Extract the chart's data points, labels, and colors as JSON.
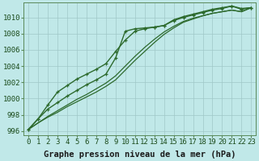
{
  "title": "Graphe pression niveau de la mer (hPa)",
  "background_color": "#c0e8e8",
  "grid_color": "#a0c8c8",
  "line_color": "#2d6a2d",
  "xlim": [
    -0.5,
    23.5
  ],
  "ylim": [
    995.5,
    1011.8
  ],
  "yticks": [
    996,
    998,
    1000,
    1002,
    1004,
    1006,
    1008,
    1010
  ],
  "xticks": [
    0,
    1,
    2,
    3,
    4,
    5,
    6,
    7,
    8,
    9,
    10,
    11,
    12,
    13,
    14,
    15,
    16,
    17,
    18,
    19,
    20,
    21,
    22,
    23
  ],
  "series": [
    {
      "y": [
        996.2,
        997.5,
        998.7,
        999.5,
        1000.3,
        1001.0,
        1001.7,
        1002.3,
        1003.0,
        1005.0,
        1008.3,
        1008.6,
        1008.7,
        1008.8,
        1009.0,
        1009.7,
        1010.1,
        1010.4,
        1010.7,
        1011.0,
        1011.2,
        1011.4,
        1011.1,
        1011.2
      ],
      "marker": true,
      "linewidth": 1.0
    },
    {
      "y": [
        996.2,
        997.0,
        997.8,
        998.5,
        999.2,
        999.9,
        1000.5,
        1001.2,
        1001.9,
        1002.8,
        1004.0,
        1005.2,
        1006.3,
        1007.3,
        1008.2,
        1008.9,
        1009.5,
        1009.9,
        1010.2,
        1010.5,
        1010.7,
        1010.9,
        1010.7,
        1011.2
      ],
      "marker": false,
      "linewidth": 0.9
    },
    {
      "y": [
        996.2,
        997.0,
        997.7,
        998.3,
        999.0,
        999.6,
        1000.2,
        1000.8,
        1001.5,
        1002.3,
        1003.5,
        1004.7,
        1005.8,
        1006.9,
        1007.9,
        1008.7,
        1009.4,
        1009.8,
        1010.2,
        1010.5,
        1010.7,
        1010.9,
        1010.7,
        1011.2
      ],
      "marker": false,
      "linewidth": 0.9
    },
    {
      "y": [
        996.2,
        997.5,
        999.2,
        1000.8,
        1001.6,
        1002.4,
        1003.0,
        1003.6,
        1004.3,
        1005.8,
        1007.2,
        1008.3,
        1008.6,
        1008.8,
        1009.0,
        1009.6,
        1010.0,
        1010.3,
        1010.6,
        1010.9,
        1011.1,
        1011.4,
        1011.0,
        1011.2
      ],
      "marker": true,
      "linewidth": 1.0
    }
  ],
  "xlabel_fontsize": 7.5,
  "tick_fontsize": 6.5,
  "fig_width": 3.2,
  "fig_height": 2.0,
  "dpi": 100
}
